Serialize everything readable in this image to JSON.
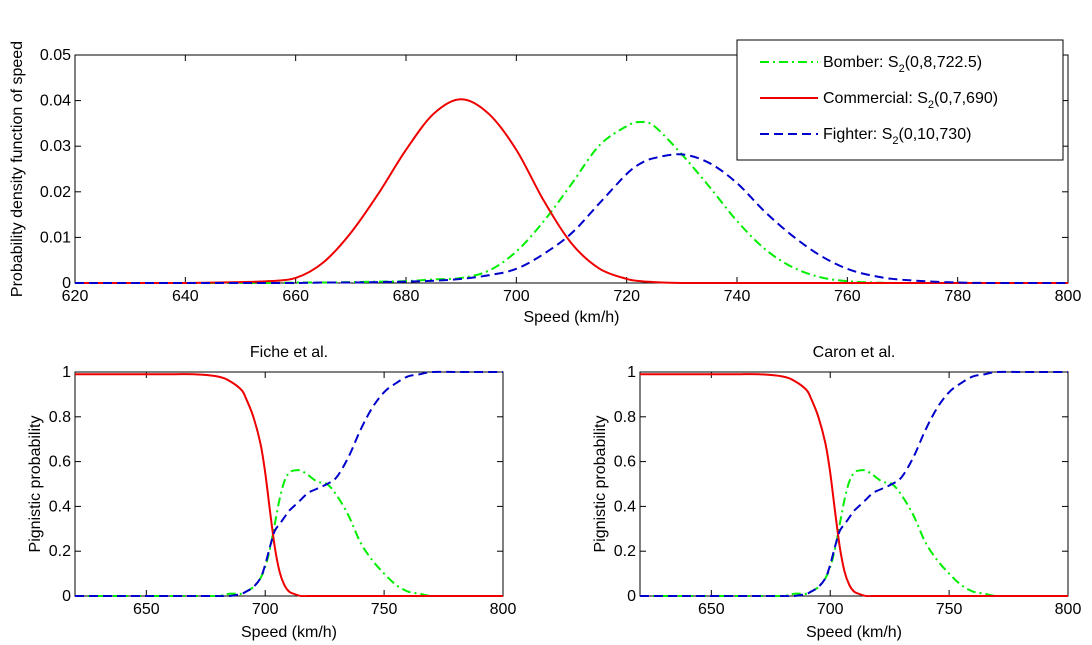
{
  "chart_data": [
    {
      "type": "line",
      "title": "",
      "xlabel": "Speed (km/h)",
      "ylabel": "Probability density function of speed",
      "xlim": [
        620,
        800
      ],
      "ylim": [
        0,
        0.05
      ],
      "xticks": [
        "620",
        "640",
        "660",
        "680",
        "700",
        "720",
        "740",
        "760",
        "780",
        "800"
      ],
      "yticks": [
        "0",
        "0.01",
        "0.02",
        "0.03",
        "0.04",
        "0.05"
      ],
      "grid": false,
      "legend_position": "top-right",
      "x": [
        620,
        630,
        640,
        650,
        655,
        660,
        665,
        670,
        675,
        680,
        685,
        690,
        695,
        700,
        705,
        710,
        715,
        720,
        722.5,
        725,
        730,
        735,
        740,
        745,
        750,
        755,
        760,
        765,
        770,
        780,
        790,
        800
      ],
      "series": [
        {
          "name": "Bomber: S2(0,8,722.5)",
          "legend_main": "Bomber: S",
          "legend_sub": "2",
          "legend_rest": "(0,8,722.5)",
          "color": "#00ee00",
          "dash": "dashdot",
          "values": [
            0,
            0,
            0,
            0,
            0,
            0.0001,
            0.0001,
            0.0002,
            0.0003,
            0.0004,
            0.0008,
            0.0011,
            0.0027,
            0.0069,
            0.0136,
            0.0217,
            0.0301,
            0.0344,
            0.0353,
            0.0344,
            0.0282,
            0.0211,
            0.0136,
            0.0075,
            0.0035,
            0.0013,
            0.0004,
            0.0001,
            0,
            0,
            0,
            0
          ]
        },
        {
          "name": "Commercial: S2(0,7,690)",
          "legend_main": "Commercial: S",
          "legend_sub": "2",
          "legend_rest": "(0,7,690)",
          "color": "#ee0000",
          "dash": "solid",
          "values": [
            0,
            0,
            0,
            0.0002,
            0.0004,
            0.0011,
            0.0045,
            0.011,
            0.0196,
            0.0292,
            0.0371,
            0.0403,
            0.0371,
            0.0292,
            0.018,
            0.0087,
            0.0032,
            0.0009,
            0.0004,
            0.0002,
            0,
            0,
            0,
            0,
            0,
            0,
            0,
            0,
            0,
            0,
            0,
            0
          ]
        },
        {
          "name": "Fighter: S2(0,10,730)",
          "legend_main": "Fighter: S",
          "legend_sub": "2",
          "legend_rest": "(0,10,730)",
          "color": "#0000cc",
          "dash": "dashed",
          "values": [
            0,
            0,
            0,
            0,
            0,
            0,
            0.0001,
            0.0001,
            0.0002,
            0.0003,
            0.0005,
            0.0009,
            0.0017,
            0.0031,
            0.0064,
            0.0109,
            0.0174,
            0.0239,
            0.0262,
            0.0274,
            0.0282,
            0.0263,
            0.0219,
            0.0157,
            0.0104,
            0.0061,
            0.0031,
            0.0015,
            0.0007,
            0.0001,
            0,
            0
          ]
        }
      ]
    },
    {
      "type": "line",
      "title": "Fiche et al.",
      "xlabel": "Speed (km/h)",
      "ylabel": "Pignistic probability",
      "xlim": [
        620,
        800
      ],
      "ylim": [
        0,
        1
      ],
      "xticks": [
        "650",
        "700",
        "750",
        "800"
      ],
      "yticks": [
        "0",
        "0.2",
        "0.4",
        "0.6",
        "0.8",
        "1"
      ],
      "grid": false,
      "x": [
        620,
        640,
        660,
        670,
        680,
        685,
        690,
        692,
        695,
        698,
        700,
        702,
        704,
        706,
        708,
        710,
        712,
        715,
        718,
        722,
        726,
        730,
        735,
        740,
        745,
        750,
        755,
        760,
        765,
        770,
        780,
        790,
        800
      ],
      "series": [
        {
          "name": "Bomber",
          "color": "#00ee00",
          "dash": "dashdot",
          "values": [
            0,
            0,
            0,
            0,
            0,
            0.01,
            0.01,
            0.02,
            0.04,
            0.08,
            0.13,
            0.21,
            0.32,
            0.43,
            0.51,
            0.55,
            0.56,
            0.56,
            0.54,
            0.51,
            0.5,
            0.45,
            0.36,
            0.24,
            0.16,
            0.1,
            0.05,
            0.02,
            0.01,
            0,
            0,
            0,
            0
          ]
        },
        {
          "name": "Commercial",
          "color": "#ee0000",
          "dash": "solid",
          "values": [
            0.99,
            0.99,
            0.99,
            0.99,
            0.98,
            0.96,
            0.92,
            0.88,
            0.8,
            0.68,
            0.55,
            0.38,
            0.22,
            0.11,
            0.05,
            0.02,
            0.01,
            0,
            0,
            0,
            0,
            0,
            0,
            0,
            0,
            0,
            0,
            0,
            0,
            0,
            0,
            0,
            0
          ]
        },
        {
          "name": "Fighter",
          "color": "#0000cc",
          "dash": "dashed",
          "values": [
            0,
            0,
            0,
            0,
            0,
            0,
            0.01,
            0.02,
            0.04,
            0.08,
            0.14,
            0.22,
            0.29,
            0.32,
            0.35,
            0.38,
            0.4,
            0.43,
            0.46,
            0.48,
            0.5,
            0.53,
            0.62,
            0.74,
            0.84,
            0.91,
            0.95,
            0.98,
            0.99,
            1,
            1,
            1,
            1
          ]
        }
      ]
    },
    {
      "type": "line",
      "title": "Caron et al.",
      "xlabel": "Speed (km/h)",
      "ylabel": "Pignistic probability",
      "xlim": [
        620,
        800
      ],
      "ylim": [
        0,
        1
      ],
      "xticks": [
        "650",
        "700",
        "750",
        "800"
      ],
      "yticks": [
        "0",
        "0.2",
        "0.4",
        "0.6",
        "0.8",
        "1"
      ],
      "grid": false,
      "x": [
        620,
        640,
        660,
        670,
        680,
        685,
        690,
        692,
        695,
        698,
        700,
        702,
        704,
        706,
        708,
        710,
        712,
        715,
        718,
        722,
        726,
        730,
        735,
        740,
        745,
        750,
        755,
        760,
        765,
        770,
        780,
        790,
        800
      ],
      "series": [
        {
          "name": "Bomber",
          "color": "#00ee00",
          "dash": "dashdot",
          "values": [
            0,
            0,
            0,
            0,
            0,
            0.01,
            0.01,
            0.02,
            0.04,
            0.08,
            0.13,
            0.21,
            0.32,
            0.43,
            0.51,
            0.55,
            0.56,
            0.56,
            0.54,
            0.51,
            0.5,
            0.45,
            0.36,
            0.24,
            0.16,
            0.1,
            0.05,
            0.02,
            0.01,
            0,
            0,
            0,
            0
          ]
        },
        {
          "name": "Commercial",
          "color": "#ee0000",
          "dash": "solid",
          "values": [
            0.99,
            0.99,
            0.99,
            0.99,
            0.98,
            0.96,
            0.92,
            0.88,
            0.8,
            0.68,
            0.55,
            0.38,
            0.22,
            0.11,
            0.05,
            0.02,
            0.01,
            0,
            0,
            0,
            0,
            0,
            0,
            0,
            0,
            0,
            0,
            0,
            0,
            0,
            0,
            0,
            0
          ]
        },
        {
          "name": "Fighter",
          "color": "#0000cc",
          "dash": "dashed",
          "values": [
            0,
            0,
            0,
            0,
            0,
            0,
            0.01,
            0.02,
            0.04,
            0.08,
            0.14,
            0.22,
            0.29,
            0.32,
            0.35,
            0.38,
            0.4,
            0.43,
            0.46,
            0.48,
            0.5,
            0.53,
            0.62,
            0.74,
            0.84,
            0.91,
            0.95,
            0.98,
            0.99,
            1,
            1,
            1,
            1
          ]
        }
      ]
    }
  ]
}
